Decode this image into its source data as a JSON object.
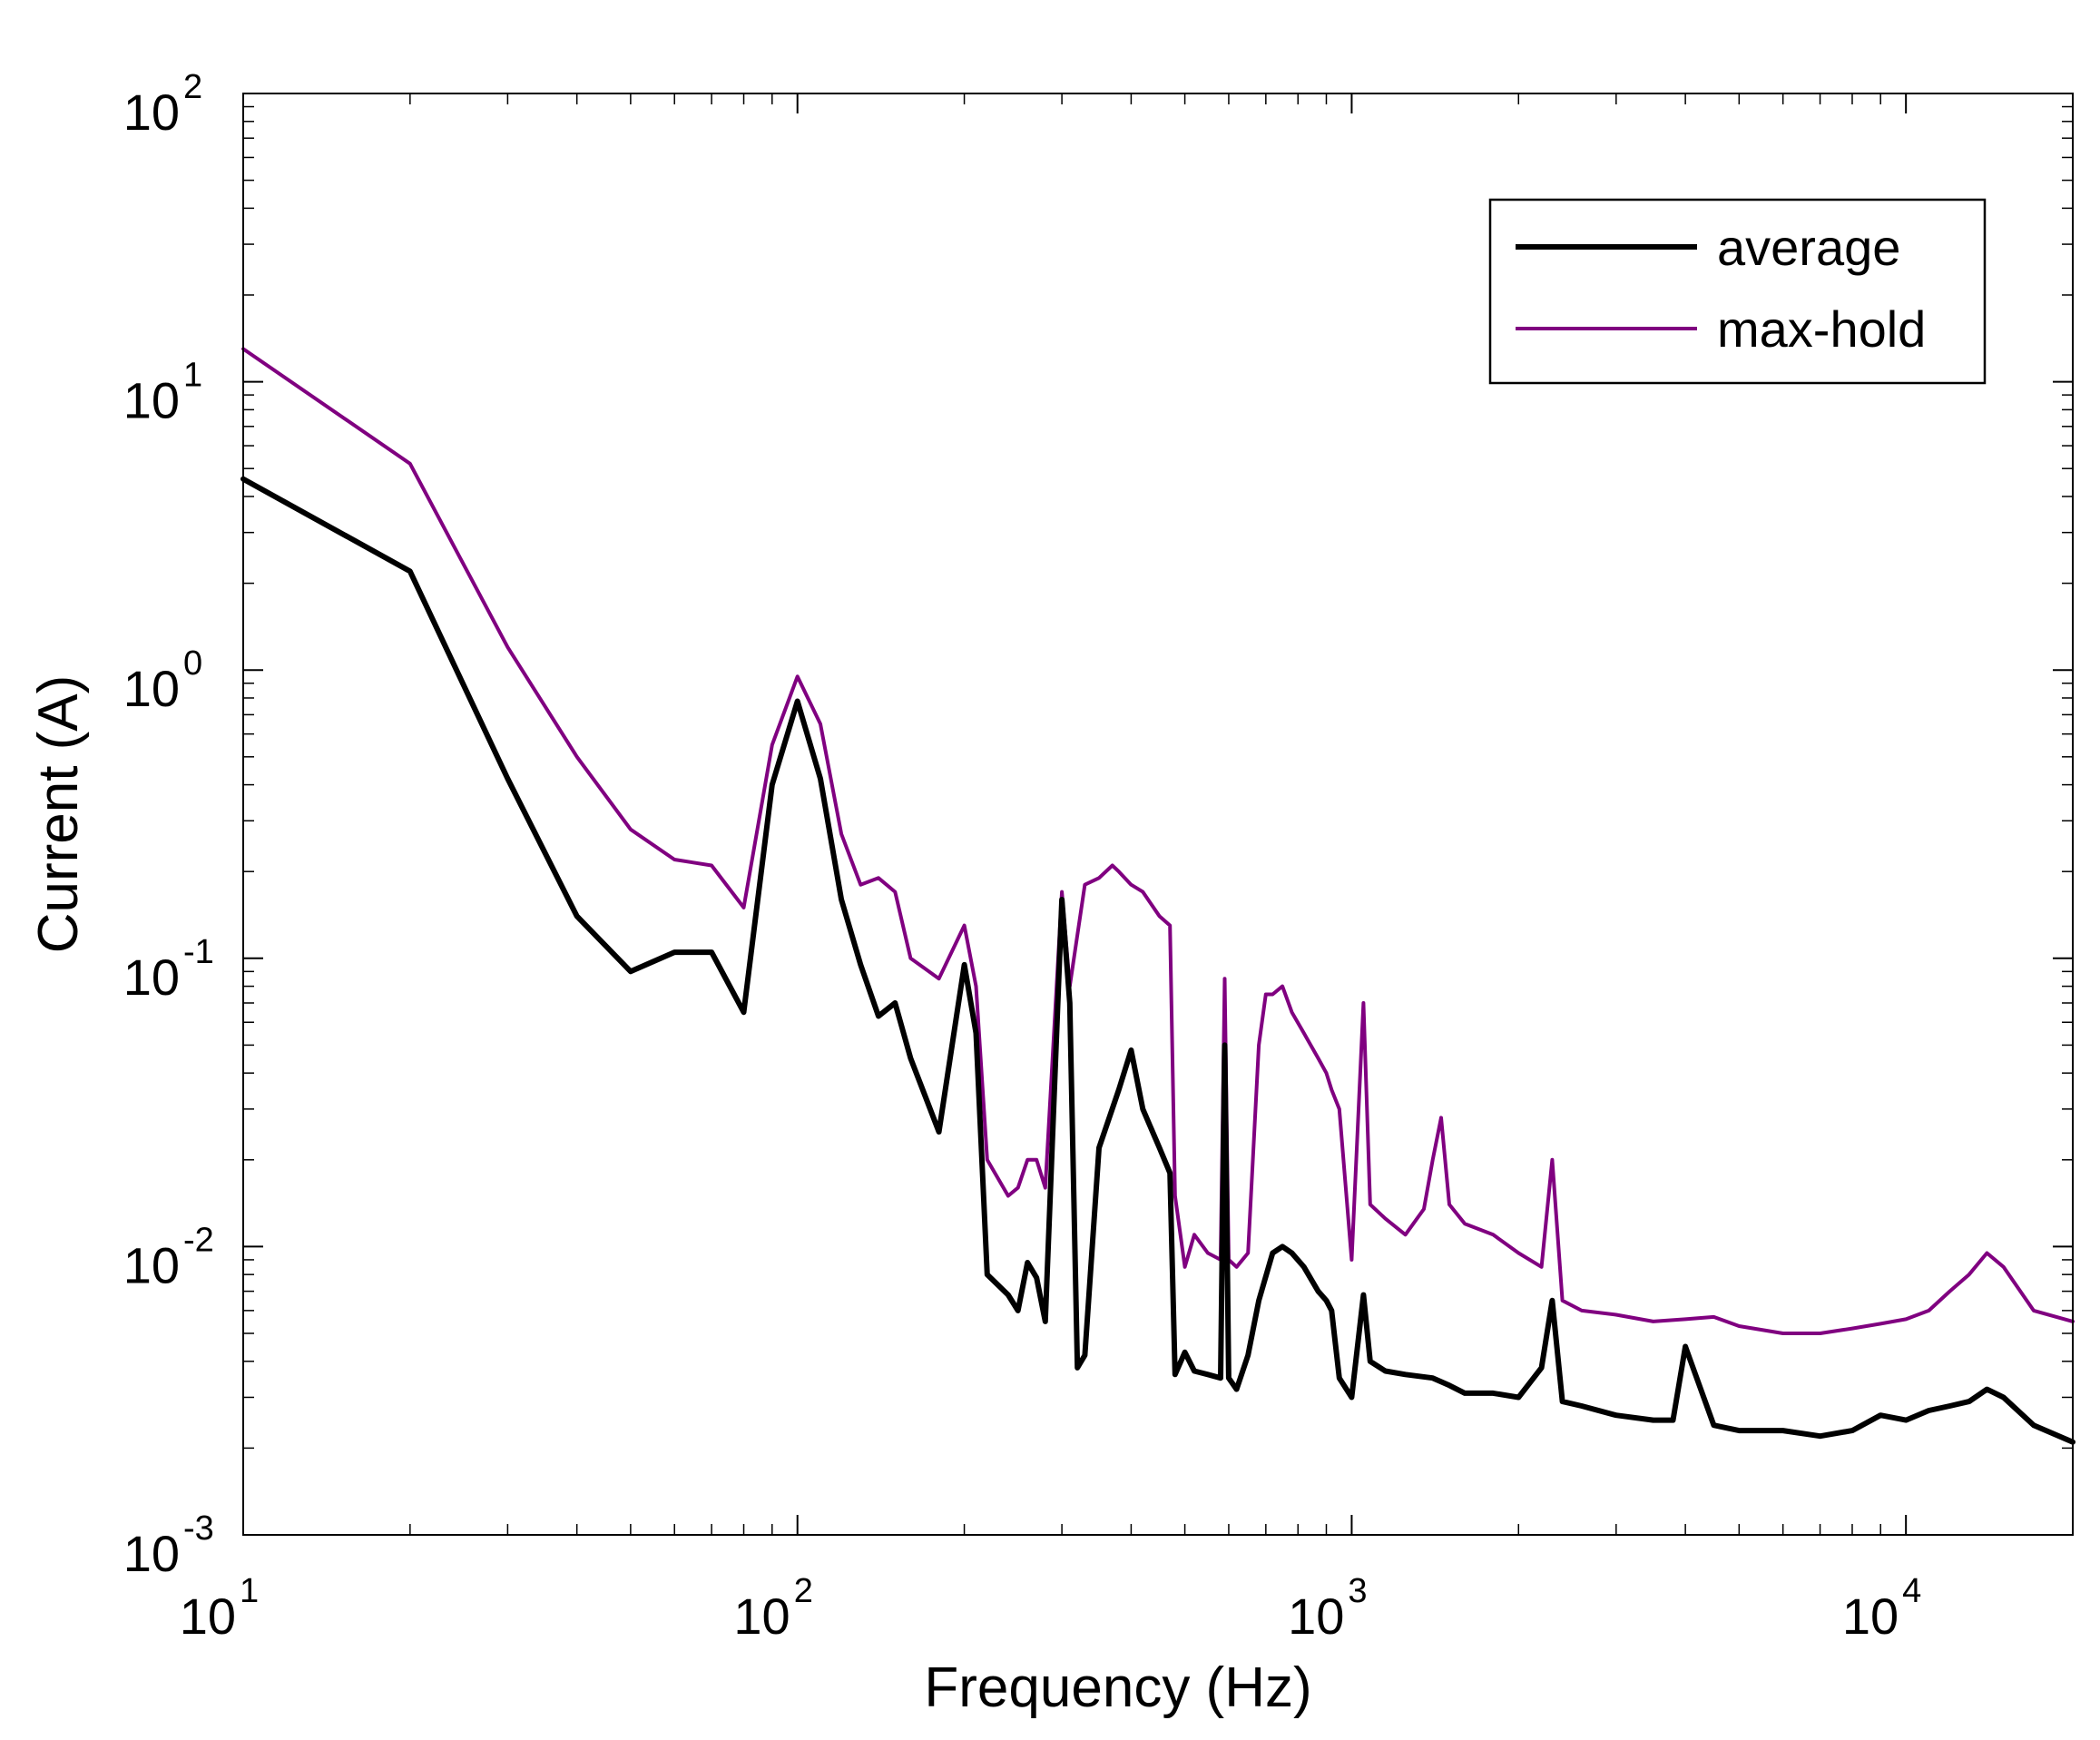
{
  "chart_data": {
    "type": "line",
    "xlabel": "Frequency (Hz)",
    "ylabel": "Current (A)",
    "x_scale": "log",
    "y_scale": "log",
    "xlim": [
      10,
      20000
    ],
    "ylim": [
      0.001,
      100
    ],
    "x_ticks": [
      {
        "value": 10,
        "base": "10",
        "exp": "1"
      },
      {
        "value": 100,
        "base": "10",
        "exp": "2"
      },
      {
        "value": 1000,
        "base": "10",
        "exp": "3"
      },
      {
        "value": 10000,
        "base": "10",
        "exp": "4"
      }
    ],
    "y_ticks": [
      {
        "value": 0.001,
        "base": "10",
        "exp": "-3"
      },
      {
        "value": 0.01,
        "base": "10",
        "exp": "-2"
      },
      {
        "value": 0.1,
        "base": "10",
        "exp": "-1"
      },
      {
        "value": 1,
        "base": "10",
        "exp": "0"
      },
      {
        "value": 10,
        "base": "10",
        "exp": "1"
      },
      {
        "value": 100,
        "base": "10",
        "exp": "2"
      }
    ],
    "grid": false,
    "legend_position": "top-right",
    "series": [
      {
        "name": "average",
        "color": "#000000",
        "x": [
          10,
          20,
          30,
          40,
          50,
          60,
          70,
          80,
          90,
          100,
          110,
          120,
          130,
          140,
          150,
          160,
          180,
          200,
          210,
          220,
          240,
          250,
          260,
          270,
          280,
          300,
          310,
          320,
          330,
          350,
          380,
          400,
          420,
          450,
          470,
          480,
          500,
          520,
          550,
          580,
          590,
          600,
          620,
          650,
          680,
          720,
          750,
          780,
          820,
          870,
          900,
          920,
          950,
          1000,
          1050,
          1080,
          1150,
          1250,
          1400,
          1500,
          1600,
          1800,
          2000,
          2200,
          2300,
          2400,
          2600,
          3000,
          3500,
          3800,
          4000,
          4500,
          5000,
          6000,
          7000,
          8000,
          9000,
          10000,
          11000,
          12000,
          13000,
          14000,
          15000,
          17000,
          20000
        ],
        "y": [
          4.6,
          2.2,
          0.42,
          0.14,
          0.09,
          0.105,
          0.105,
          0.065,
          0.4,
          0.78,
          0.42,
          0.16,
          0.095,
          0.063,
          0.07,
          0.045,
          0.025,
          0.095,
          0.055,
          0.008,
          0.0068,
          0.006,
          0.0088,
          0.0078,
          0.0055,
          0.16,
          0.07,
          0.0038,
          0.0042,
          0.022,
          0.035,
          0.048,
          0.03,
          0.022,
          0.018,
          0.0036,
          0.0043,
          0.0037,
          0.0036,
          0.0035,
          0.05,
          0.0035,
          0.0032,
          0.0042,
          0.0065,
          0.0095,
          0.01,
          0.0095,
          0.0085,
          0.007,
          0.0065,
          0.006,
          0.0035,
          0.003,
          0.0068,
          0.004,
          0.0037,
          0.0036,
          0.0035,
          0.0033,
          0.0031,
          0.0031,
          0.003,
          0.0038,
          0.0065,
          0.0029,
          0.0028,
          0.0026,
          0.0025,
          0.0025,
          0.0045,
          0.0024,
          0.0023,
          0.0023,
          0.0022,
          0.0023,
          0.0026,
          0.0025,
          0.0027,
          0.0028,
          0.0029,
          0.0032,
          0.003,
          0.0024,
          0.0021
        ]
      },
      {
        "name": "max-hold",
        "color": "#800080",
        "x": [
          10,
          20,
          30,
          40,
          50,
          60,
          70,
          80,
          90,
          100,
          110,
          120,
          130,
          140,
          150,
          160,
          180,
          200,
          210,
          220,
          240,
          250,
          260,
          270,
          280,
          300,
          310,
          330,
          350,
          370,
          380,
          400,
          420,
          450,
          470,
          480,
          500,
          520,
          550,
          580,
          590,
          600,
          620,
          650,
          680,
          700,
          720,
          750,
          780,
          820,
          870,
          900,
          920,
          950,
          1000,
          1050,
          1080,
          1150,
          1250,
          1350,
          1400,
          1450,
          1500,
          1600,
          1800,
          2000,
          2200,
          2300,
          2400,
          2600,
          3000,
          3500,
          4000,
          4500,
          5000,
          6000,
          7000,
          8000,
          9000,
          10000,
          11000,
          12000,
          13000,
          14000,
          15000,
          17000,
          20000
        ],
        "y": [
          13,
          5.2,
          1.2,
          0.5,
          0.28,
          0.22,
          0.21,
          0.15,
          0.55,
          0.95,
          0.65,
          0.27,
          0.18,
          0.19,
          0.17,
          0.1,
          0.085,
          0.13,
          0.08,
          0.02,
          0.015,
          0.016,
          0.02,
          0.02,
          0.016,
          0.17,
          0.08,
          0.18,
          0.19,
          0.21,
          0.2,
          0.18,
          0.17,
          0.14,
          0.13,
          0.015,
          0.0085,
          0.011,
          0.0095,
          0.009,
          0.085,
          0.009,
          0.0085,
          0.0095,
          0.05,
          0.075,
          0.075,
          0.08,
          0.065,
          0.055,
          0.045,
          0.04,
          0.035,
          0.03,
          0.009,
          0.07,
          0.014,
          0.0125,
          0.011,
          0.0135,
          0.02,
          0.028,
          0.014,
          0.012,
          0.011,
          0.0095,
          0.0085,
          0.02,
          0.0065,
          0.006,
          0.0058,
          0.0055,
          0.0056,
          0.0057,
          0.0053,
          0.005,
          0.005,
          0.0052,
          0.0054,
          0.0056,
          0.006,
          0.007,
          0.008,
          0.0095,
          0.0085,
          0.006,
          0.0055
        ]
      }
    ]
  }
}
